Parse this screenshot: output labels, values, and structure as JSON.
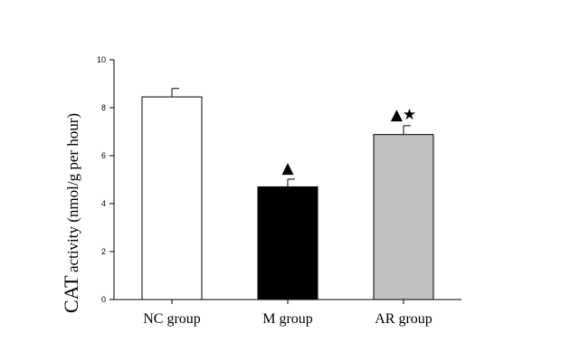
{
  "chart_data": {
    "type": "bar",
    "ylabel_main": "CAT",
    "ylabel_sub": "activity (nmol/g per hour)",
    "ylim": [
      0,
      10
    ],
    "yticks": [
      "0",
      "2",
      "4",
      "6",
      "8",
      "10"
    ],
    "categories": [
      "NC group",
      "M group",
      "AR group"
    ],
    "values": [
      8.45,
      4.7,
      6.88
    ],
    "errors": [
      0.35,
      0.32,
      0.37
    ],
    "bar_colors": [
      "#ffffff",
      "#000000",
      "#c0c0c0"
    ],
    "markers": [
      "",
      "▲",
      "▲★"
    ],
    "grid": false
  }
}
